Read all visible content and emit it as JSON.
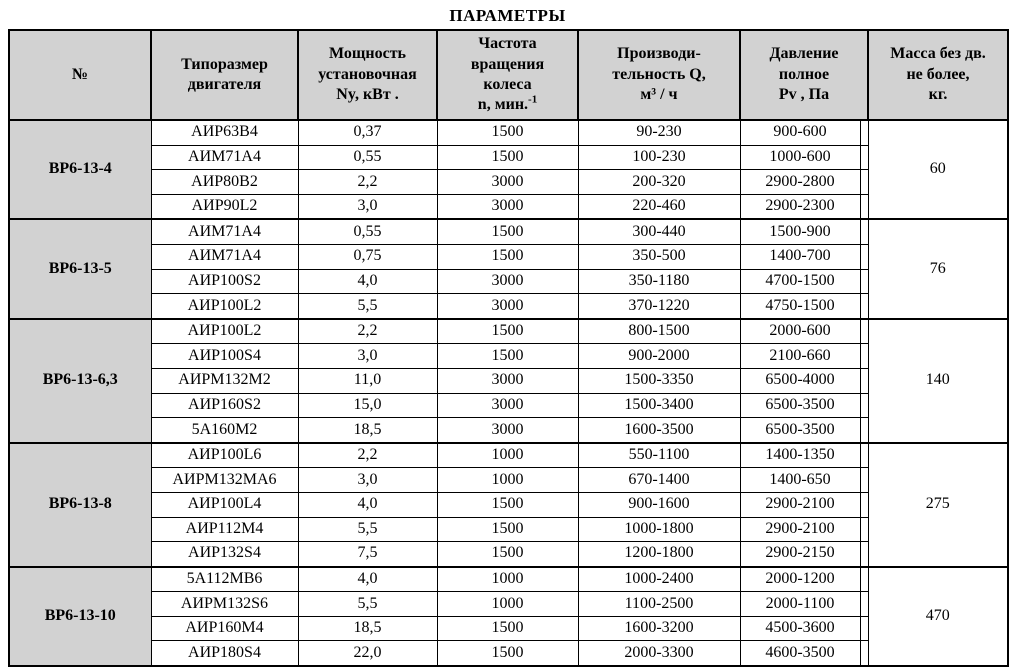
{
  "title": "ПАРАМЕТРЫ",
  "colors": {
    "header_bg": "#d2d2d2",
    "border": "#000000",
    "page_bg": "#ffffff"
  },
  "table": {
    "headers": {
      "num": "№",
      "motor": "Типоразмер\nдвигателя",
      "power": "Мощность\nустановочная\nNy, кВт .",
      "speed_main": "Частота\nвращения\nколеса\nn, мин.",
      "speed_sup": "-1",
      "flow": "Производи-\nтельность Q,\nм³ / ч",
      "pressure": "Давление\nполное\nPv , Па",
      "mass": "Масса без дв.\nне более,\nкг."
    },
    "groups": [
      {
        "name": "ВР6-13-4",
        "mass": "60",
        "rows": [
          [
            "АИР63В4",
            "0,37",
            "1500",
            "90-230",
            "900-600"
          ],
          [
            "АИМ71А4",
            "0,55",
            "1500",
            "100-230",
            "1000-600"
          ],
          [
            "АИР80В2",
            "2,2",
            "3000",
            "200-320",
            "2900-2800"
          ],
          [
            "АИР90L2",
            "3,0",
            "3000",
            "220-460",
            "2900-2300"
          ]
        ]
      },
      {
        "name": "ВР6-13-5",
        "mass": "76",
        "rows": [
          [
            "АИМ71А4",
            "0,55",
            "1500",
            "300-440",
            "1500-900"
          ],
          [
            "АИМ71А4",
            "0,75",
            "1500",
            "350-500",
            "1400-700"
          ],
          [
            "АИР100S2",
            "4,0",
            "3000",
            "350-1180",
            "4700-1500"
          ],
          [
            "АИР100L2",
            "5,5",
            "3000",
            "370-1220",
            "4750-1500"
          ]
        ]
      },
      {
        "name": "ВР6-13-6,3",
        "mass": "140",
        "rows": [
          [
            "АИР100L2",
            "2,2",
            "1500",
            "800-1500",
            "2000-600"
          ],
          [
            "АИР100S4",
            "3,0",
            "1500",
            "900-2000",
            "2100-660"
          ],
          [
            "АИРМ132М2",
            "11,0",
            "3000",
            "1500-3350",
            "6500-4000"
          ],
          [
            "АИР160S2",
            "15,0",
            "3000",
            "1500-3400",
            "6500-3500"
          ],
          [
            "5А160М2",
            "18,5",
            "3000",
            "1600-3500",
            "6500-3500"
          ]
        ]
      },
      {
        "name": "ВР6-13-8",
        "mass": "275",
        "rows": [
          [
            "АИР100L6",
            "2,2",
            "1000",
            "550-1100",
            "1400-1350"
          ],
          [
            "АИРМ132МА6",
            "3,0",
            "1000",
            "670-1400",
            "1400-650"
          ],
          [
            "АИР100L4",
            "4,0",
            "1500",
            "900-1600",
            "2900-2100"
          ],
          [
            "АИР112М4",
            "5,5",
            "1500",
            "1000-1800",
            "2900-2100"
          ],
          [
            "АИР132S4",
            "7,5",
            "1500",
            "1200-1800",
            "2900-2150"
          ]
        ]
      },
      {
        "name": "ВР6-13-10",
        "mass": "470",
        "rows": [
          [
            "5А112МВ6",
            "4,0",
            "1000",
            "1000-2400",
            "2000-1200"
          ],
          [
            "АИРМ132S6",
            "5,5",
            "1000",
            "1100-2500",
            "2000-1100"
          ],
          [
            "АИР160М4",
            "18,5",
            "1500",
            "1600-3200",
            "4500-3600"
          ],
          [
            "АИР180S4",
            "22,0",
            "1500",
            "2000-3300",
            "4600-3500"
          ]
        ]
      }
    ]
  }
}
